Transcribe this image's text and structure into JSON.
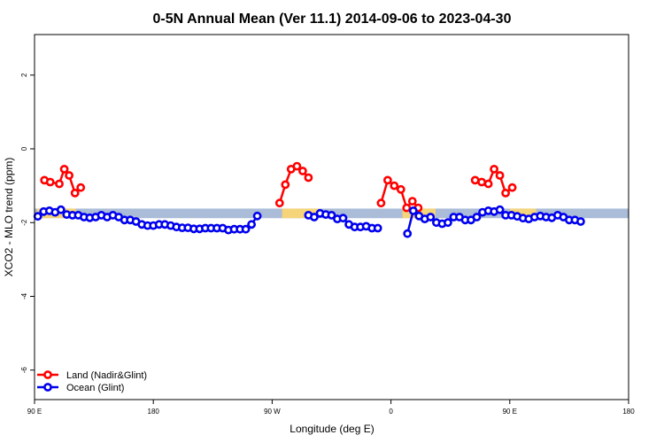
{
  "chart_data": {
    "type": "line",
    "title": "0-5N Annual Mean (Ver 11.1)   2014-09-06 to 2023-04-30",
    "xlabel": "Longitude (deg E)",
    "ylabel": "XCO2 - MLO trend (ppm)",
    "xlim": [
      90,
      450
    ],
    "ylim": [
      -6.8,
      3.1
    ],
    "x_ticks": [
      {
        "value": 90,
        "label": "90 E"
      },
      {
        "value": 162,
        "label": "180"
      },
      {
        "value": 234,
        "label": "90 W"
      },
      {
        "value": 306,
        "label": "0"
      },
      {
        "value": 378,
        "label": "90 E"
      },
      {
        "value": 450,
        "label": "180"
      }
    ],
    "y_ticks": [
      {
        "value": 2,
        "label": "2"
      },
      {
        "value": 0,
        "label": "0"
      },
      {
        "value": -2,
        "label": "-2"
      },
      {
        "value": -4,
        "label": "-4"
      },
      {
        "value": -6,
        "label": "-6"
      }
    ],
    "legend": {
      "placement": "bottom-left",
      "entries": [
        {
          "label": "Land (Nadir&Glint)",
          "color": "#ff0000"
        },
        {
          "label": "Ocean (Glint)",
          "color": "#0000ee"
        }
      ]
    },
    "surface_band": {
      "y_range": [
        -1.88,
        -1.62
      ],
      "ocean_color": "#aabcd8",
      "land_color": "#f5d47a",
      "land_segments": [
        [
          91.5,
          115
        ],
        [
          240,
          262
        ],
        [
          313,
          333
        ],
        [
          378,
          394
        ]
      ]
    },
    "series": [
      {
        "name": "Land (Nadir&Glint)",
        "color": "#ff0000",
        "segments": [
          [
            [
              96,
              -0.85
            ],
            [
              99.5,
              -0.9
            ],
            [
              105,
              -0.95
            ],
            [
              108,
              -0.55
            ],
            [
              111,
              -0.72
            ],
            [
              114.5,
              -1.2
            ],
            [
              118,
              -1.05
            ]
          ],
          [
            [
              238.5,
              -1.47
            ],
            [
              242,
              -0.97
            ],
            [
              245.5,
              -0.55
            ],
            [
              249,
              -0.47
            ],
            [
              252.5,
              -0.6
            ],
            [
              256,
              -0.78
            ]
          ],
          [
            [
              300,
              -1.47
            ],
            [
              304,
              -0.85
            ],
            [
              308,
              -1.0
            ],
            [
              312,
              -1.1
            ],
            [
              315.5,
              -1.6
            ],
            [
              319,
              -1.42
            ],
            [
              322.5,
              -1.6
            ]
          ],
          [
            [
              357,
              -0.85
            ],
            [
              361,
              -0.9
            ],
            [
              365,
              -0.95
            ],
            [
              368.5,
              -0.55
            ],
            [
              372,
              -0.72
            ],
            [
              375.5,
              -1.2
            ],
            [
              379.5,
              -1.05
            ]
          ]
        ]
      },
      {
        "name": "Ocean (Glint)",
        "color": "#0000ee",
        "segments": [
          [
            [
              92,
              -1.83
            ],
            [
              95.5,
              -1.7
            ],
            [
              99,
              -1.68
            ],
            [
              102.5,
              -1.72
            ],
            [
              106,
              -1.65
            ],
            [
              109.5,
              -1.78
            ],
            [
              113,
              -1.8
            ],
            [
              116.5,
              -1.8
            ],
            [
              120,
              -1.85
            ],
            [
              123.5,
              -1.87
            ],
            [
              127,
              -1.85
            ],
            [
              130.5,
              -1.8
            ],
            [
              134,
              -1.85
            ],
            [
              137.5,
              -1.8
            ],
            [
              141,
              -1.85
            ],
            [
              144.5,
              -1.93
            ],
            [
              148,
              -1.93
            ],
            [
              151.5,
              -1.97
            ],
            [
              155,
              -2.05
            ],
            [
              158.5,
              -2.08
            ],
            [
              162,
              -2.08
            ],
            [
              165.5,
              -2.05
            ],
            [
              169,
              -2.05
            ],
            [
              172.5,
              -2.08
            ],
            [
              176,
              -2.12
            ],
            [
              179.5,
              -2.14
            ],
            [
              183,
              -2.14
            ],
            [
              186.5,
              -2.17
            ],
            [
              190,
              -2.17
            ],
            [
              193.5,
              -2.15
            ],
            [
              197,
              -2.15
            ],
            [
              200.5,
              -2.15
            ],
            [
              204,
              -2.15
            ],
            [
              207.5,
              -2.2
            ],
            [
              211,
              -2.18
            ],
            [
              214.5,
              -2.18
            ],
            [
              218,
              -2.18
            ],
            [
              221.5,
              -2.05
            ],
            [
              225,
              -1.82
            ]
          ],
          [
            [
              256,
              -1.8
            ],
            [
              259.5,
              -1.85
            ],
            [
              263,
              -1.75
            ],
            [
              266.5,
              -1.78
            ],
            [
              270,
              -1.8
            ],
            [
              273.5,
              -1.9
            ],
            [
              277,
              -1.88
            ],
            [
              280.5,
              -2.05
            ],
            [
              284,
              -2.12
            ],
            [
              287.5,
              -2.12
            ],
            [
              291,
              -2.1
            ],
            [
              294.5,
              -2.15
            ],
            [
              298,
              -2.15
            ]
          ],
          [
            [
              316,
              -2.3
            ],
            [
              319.5,
              -1.68
            ],
            [
              323,
              -1.82
            ],
            [
              326.5,
              -1.9
            ],
            [
              330,
              -1.85
            ],
            [
              333.5,
              -2.0
            ],
            [
              337,
              -2.03
            ],
            [
              340.5,
              -2.0
            ],
            [
              344,
              -1.85
            ],
            [
              347.5,
              -1.85
            ],
            [
              351,
              -1.93
            ],
            [
              354.5,
              -1.93
            ],
            [
              358,
              -1.85
            ],
            [
              361.5,
              -1.72
            ],
            [
              365,
              -1.68
            ],
            [
              368.5,
              -1.7
            ],
            [
              372,
              -1.65
            ],
            [
              375.5,
              -1.8
            ],
            [
              379,
              -1.8
            ],
            [
              382.5,
              -1.83
            ],
            [
              386,
              -1.88
            ],
            [
              389.5,
              -1.9
            ],
            [
              393,
              -1.85
            ],
            [
              396.5,
              -1.82
            ],
            [
              400,
              -1.85
            ],
            [
              403.5,
              -1.87
            ],
            [
              407,
              -1.8
            ],
            [
              410.5,
              -1.85
            ],
            [
              414,
              -1.93
            ],
            [
              417.5,
              -1.93
            ],
            [
              421,
              -1.97
            ]
          ]
        ]
      }
    ]
  }
}
